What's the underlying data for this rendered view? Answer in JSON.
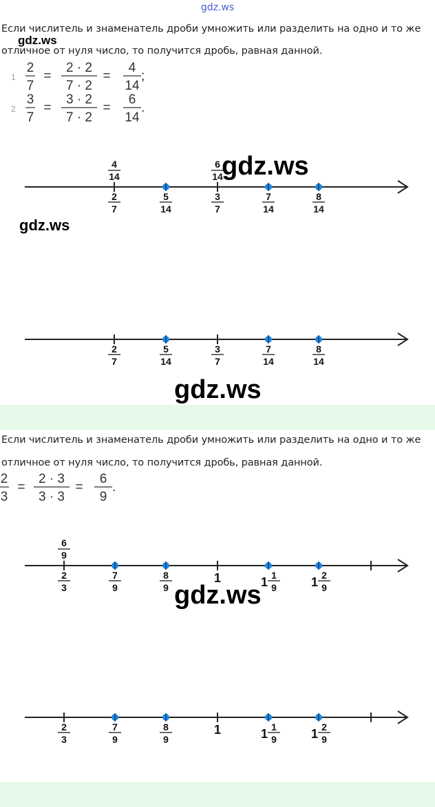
{
  "site_label": "gdz.ws",
  "watermark": "gdz.ws",
  "section1": {
    "text_line1": "Если числитель и знаменатель дроби умножить или разделить на одно и то же",
    "text_line2": "отличное от нуля число, то получится дробь, равная данной.",
    "equations": [
      {
        "number": "1",
        "a": [
          "2",
          "7"
        ],
        "b": [
          "2 · 2",
          "7 · 2"
        ],
        "c": [
          "4",
          "14"
        ],
        "end": ";"
      },
      {
        "number": "2",
        "a": [
          "3",
          "7"
        ],
        "b": [
          "3 · 2",
          "7 · 2"
        ],
        "c": [
          "6",
          "14"
        ],
        "end": "."
      }
    ],
    "line1": {
      "above": [
        {
          "tick": 0,
          "num": "4",
          "den": "14"
        },
        {
          "tick": 2,
          "num": "6",
          "den": "14"
        }
      ],
      "ticks": [
        {
          "num": "2",
          "den": "7",
          "dot": false
        },
        {
          "num": "5",
          "den": "14",
          "dot": true
        },
        {
          "num": "3",
          "den": "7",
          "dot": false
        },
        {
          "num": "7",
          "den": "14",
          "dot": true
        },
        {
          "num": "8",
          "den": "14",
          "dot": true
        }
      ]
    },
    "line2": {
      "ticks": [
        {
          "num": "2",
          "den": "7",
          "dot": false
        },
        {
          "num": "5",
          "den": "14",
          "dot": true
        },
        {
          "num": "3",
          "den": "7",
          "dot": false
        },
        {
          "num": "7",
          "den": "14",
          "dot": true
        },
        {
          "num": "8",
          "den": "14",
          "dot": true
        }
      ]
    }
  },
  "section2": {
    "text_line1": "Если числитель и знаменатель дроби умножить или разделить на одно и то же",
    "text_line2": "отличное от нуля число, то получится дробь, равная данной.",
    "equation": {
      "a": [
        "2",
        "3"
      ],
      "b": [
        "2 · 3",
        "3 · 3"
      ],
      "c": [
        "6",
        "9"
      ],
      "end": "."
    },
    "line1": {
      "above": [
        {
          "tick": 0,
          "num": "6",
          "den": "9"
        }
      ],
      "ticks": [
        {
          "whole": "",
          "num": "2",
          "den": "3",
          "dot": false
        },
        {
          "whole": "",
          "num": "7",
          "den": "9",
          "dot": true
        },
        {
          "whole": "",
          "num": "8",
          "den": "9",
          "dot": true
        },
        {
          "whole": "1",
          "num": "",
          "den": "",
          "dot": false
        },
        {
          "whole": "1",
          "num": "1",
          "den": "9",
          "dot": true
        },
        {
          "whole": "1",
          "num": "2",
          "den": "9",
          "dot": true
        },
        {
          "whole": "",
          "num": "",
          "den": "",
          "dot": false
        }
      ]
    },
    "line2": {
      "ticks": [
        {
          "whole": "",
          "num": "2",
          "den": "3",
          "dot": false
        },
        {
          "whole": "",
          "num": "7",
          "den": "9",
          "dot": true
        },
        {
          "whole": "",
          "num": "8",
          "den": "9",
          "dot": true
        },
        {
          "whole": "1",
          "num": "",
          "den": "",
          "dot": false
        },
        {
          "whole": "1",
          "num": "1",
          "den": "9",
          "dot": true
        },
        {
          "whole": "1",
          "num": "2",
          "den": "9",
          "dot": true
        },
        {
          "whole": "",
          "num": "",
          "den": "",
          "dot": false
        }
      ]
    }
  },
  "colors": {
    "dot": "#1e88e5",
    "band": "#e6f9e9",
    "link": "#4a5bd8"
  }
}
